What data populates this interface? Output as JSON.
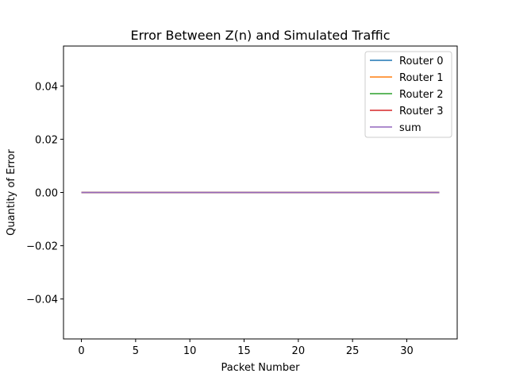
{
  "chart_data": {
    "type": "line",
    "title": "Error Between Z(n) and Simulated Traffic",
    "xlabel": "Packet Number",
    "ylabel": "Quantity of Error",
    "xlim": [
      -1.65,
      34.65
    ],
    "ylim": [
      -0.055,
      0.055
    ],
    "x_ticks": [
      0,
      5,
      10,
      15,
      20,
      25,
      30
    ],
    "x_tick_labels": [
      "0",
      "5",
      "10",
      "15",
      "20",
      "25",
      "30"
    ],
    "y_ticks": [
      -0.04,
      -0.02,
      0.0,
      0.02,
      0.04
    ],
    "y_tick_labels": [
      "−0.04",
      "−0.02",
      "0.00",
      "0.02",
      "0.04"
    ],
    "grid": false,
    "legend_position": "top-right",
    "x": [
      0,
      33
    ],
    "series": [
      {
        "name": "Router 0",
        "color": "#1f77b4",
        "values": [
          0,
          0
        ]
      },
      {
        "name": "Router 1",
        "color": "#ff7f0e",
        "values": [
          0,
          0
        ]
      },
      {
        "name": "Router 2",
        "color": "#2ca02c",
        "values": [
          0,
          0
        ]
      },
      {
        "name": "Router 3",
        "color": "#d62728",
        "values": [
          0,
          0
        ]
      },
      {
        "name": "sum",
        "color": "#9467bd",
        "values": [
          0,
          0
        ]
      }
    ]
  }
}
